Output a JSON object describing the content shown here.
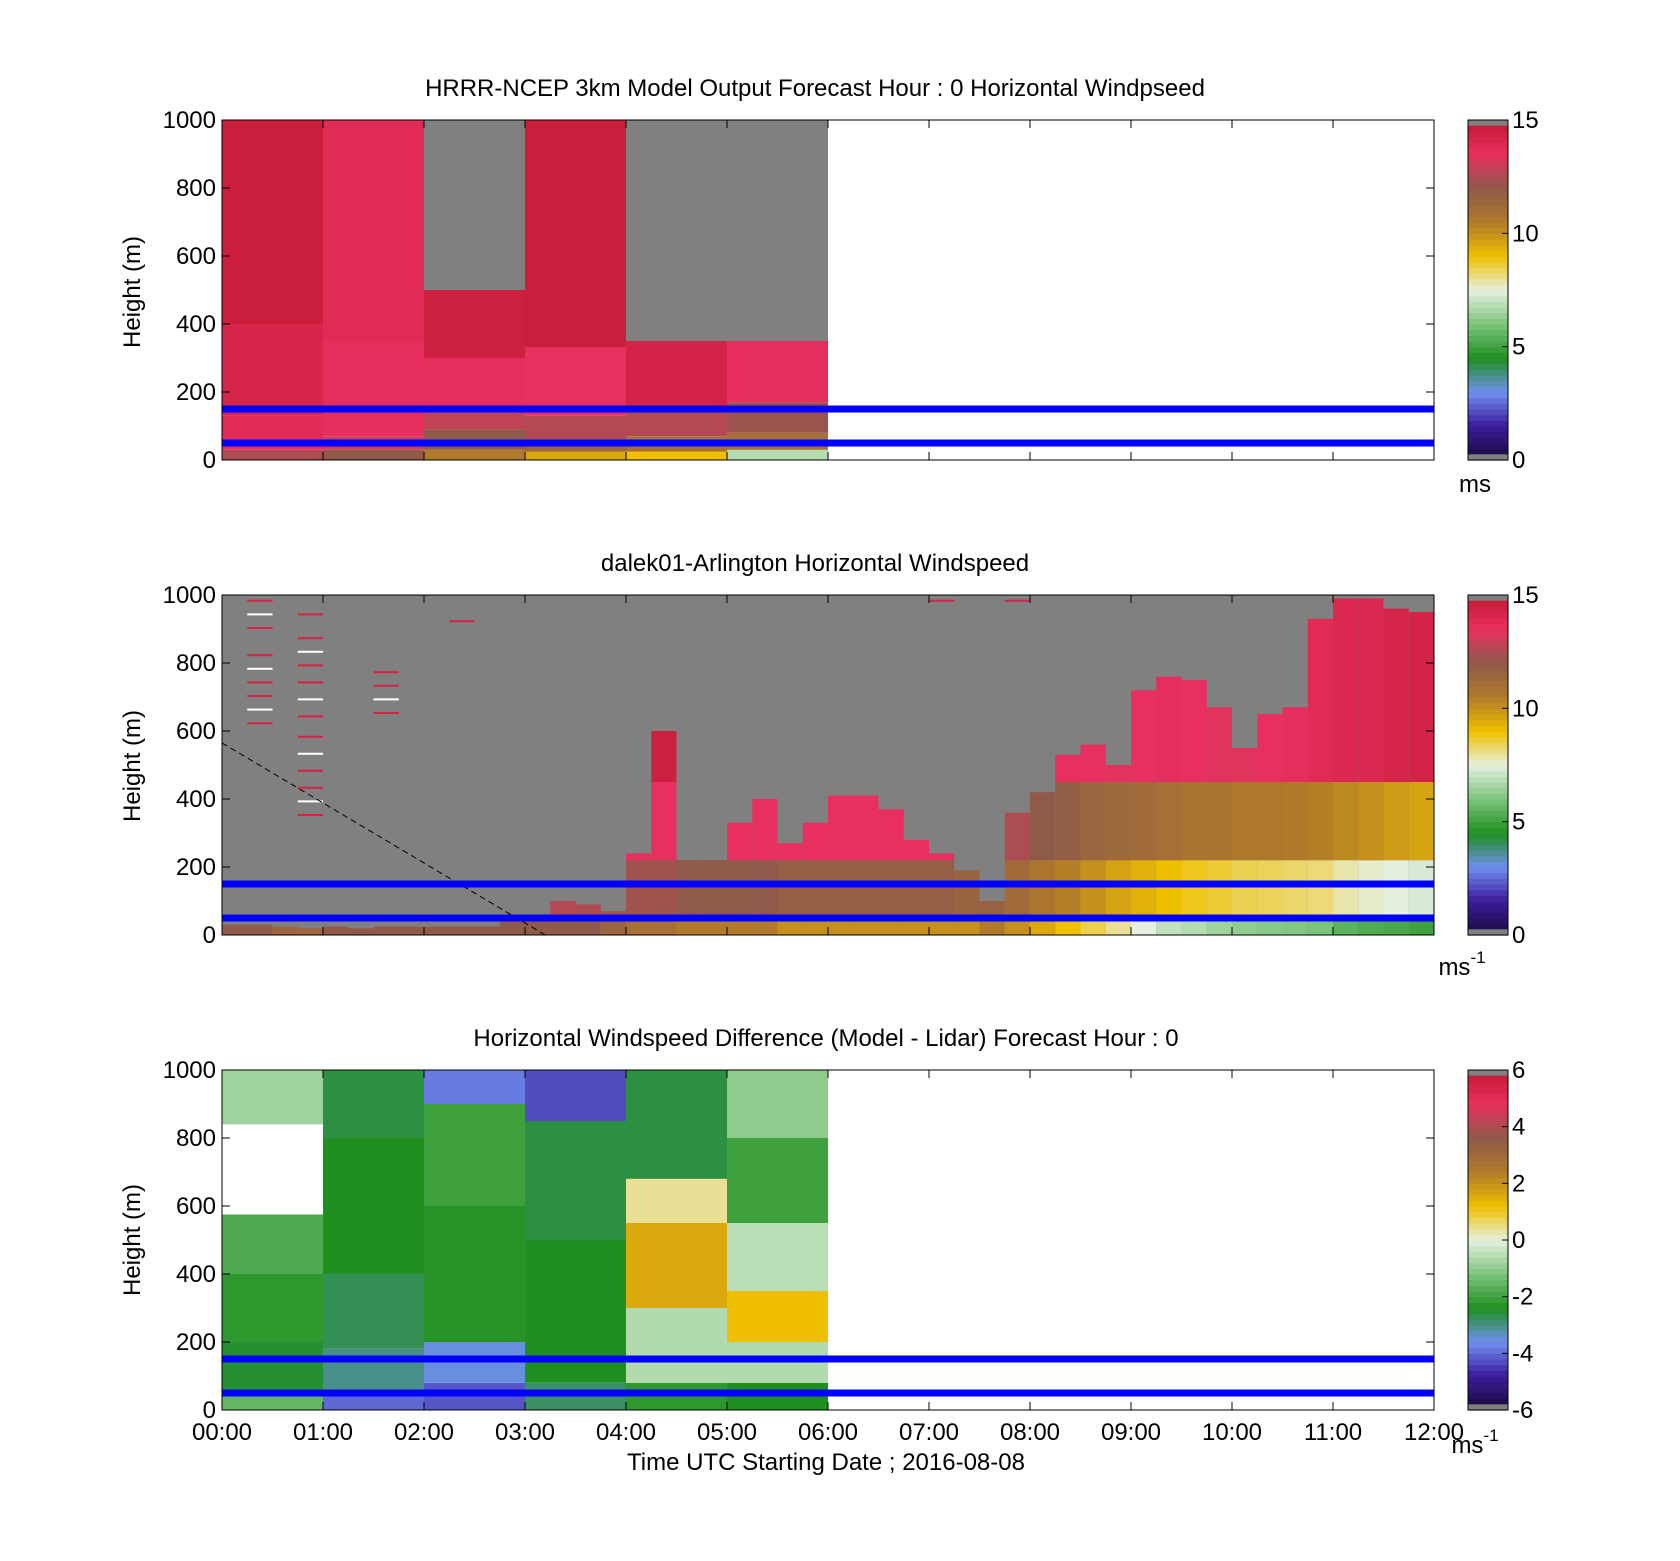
{
  "colors": {
    "background": "#ffffff",
    "missing": "#808080",
    "reference_line": "#0000ff",
    "palette_speed": [
      "#1a0a3a",
      "#3a1a9a",
      "#6f8ff0",
      "#1f8f1f",
      "#7cc47c",
      "#e6f0e0",
      "#f0c000",
      "#b07a2a",
      "#8f5a4a",
      "#e83060",
      "#c01830"
    ],
    "palette_diff": [
      "#1a0a3a",
      "#3a1a9a",
      "#6f8ff0",
      "#1f8f1f",
      "#7cc47c",
      "#e6f0e0",
      "#f0c000",
      "#b07a2a",
      "#8f5a4a",
      "#e83060",
      "#c01830"
    ]
  },
  "x_axis": {
    "label": "Time UTC  Starting Date ; 2016-08-08",
    "ticks": [
      "00:00",
      "01:00",
      "02:00",
      "03:00",
      "04:00",
      "05:00",
      "06:00",
      "07:00",
      "08:00",
      "09:00",
      "10:00",
      "11:00",
      "12:00"
    ]
  },
  "chart_data": [
    {
      "type": "heatmap",
      "title": "HRRR-NCEP 3km Model Output   Forecast Hour : 0 Horizontal Windpseed",
      "xlabel": "",
      "ylabel": "Height (m)",
      "xlim": [
        "00:00",
        "12:00"
      ],
      "ylim": [
        0,
        1000
      ],
      "yticks": [
        "0",
        "200",
        "400",
        "600",
        "800",
        "1000"
      ],
      "colorbar": {
        "min": 0,
        "max": 15,
        "ticks": [
          "0",
          "5",
          "10",
          "15"
        ],
        "unit": "ms",
        "unit_sup": ""
      },
      "reference_lines_m": [
        50,
        150
      ],
      "columns": [
        {
          "start": "00:00",
          "end": "01:00",
          "layers": [
            {
              "from": 0,
              "to": 30,
              "value": 12.5
            },
            {
              "from": 30,
              "to": 60,
              "value": 13.5
            },
            {
              "from": 60,
              "to": 130,
              "value": 13.8
            },
            {
              "from": 130,
              "to": 400,
              "value": 14.2
            },
            {
              "from": 400,
              "to": 1000,
              "value": 14.6
            }
          ]
        },
        {
          "start": "01:00",
          "end": "02:00",
          "layers": [
            {
              "from": 0,
              "to": 30,
              "value": 12.0
            },
            {
              "from": 30,
              "to": 70,
              "value": 13.0
            },
            {
              "from": 70,
              "to": 350,
              "value": 13.6
            },
            {
              "from": 350,
              "to": 1000,
              "value": 13.8
            }
          ]
        },
        {
          "start": "02:00",
          "end": "03:00",
          "layers": [
            {
              "from": 0,
              "to": 30,
              "value": 10.5
            },
            {
              "from": 30,
              "to": 90,
              "value": 12.0
            },
            {
              "from": 90,
              "to": 160,
              "value": 12.8
            },
            {
              "from": 160,
              "to": 300,
              "value": 13.6
            },
            {
              "from": 300,
              "to": 500,
              "value": 14.5
            }
          ]
        },
        {
          "start": "03:00",
          "end": "04:00",
          "layers": [
            {
              "from": 0,
              "to": 25,
              "value": 9.5
            },
            {
              "from": 25,
              "to": 60,
              "value": 11.5
            },
            {
              "from": 60,
              "to": 130,
              "value": 12.6
            },
            {
              "from": 130,
              "to": 330,
              "value": 13.5
            },
            {
              "from": 330,
              "to": 1000,
              "value": 14.6
            }
          ]
        },
        {
          "start": "04:00",
          "end": "05:00",
          "layers": [
            {
              "from": 0,
              "to": 25,
              "value": 9.0
            },
            {
              "from": 25,
              "to": 70,
              "value": 11.0
            },
            {
              "from": 70,
              "to": 150,
              "value": 12.6
            },
            {
              "from": 150,
              "to": 350,
              "value": 14.3
            }
          ]
        },
        {
          "start": "05:00",
          "end": "06:00",
          "layers": [
            {
              "from": 0,
              "to": 30,
              "value": 6.8
            },
            {
              "from": 30,
              "to": 80,
              "value": 11.0
            },
            {
              "from": 80,
              "to": 170,
              "value": 12.2
            },
            {
              "from": 170,
              "to": 350,
              "value": 13.6
            }
          ]
        }
      ],
      "missing_ranges": [
        {
          "start": "02:00",
          "end": "03:00",
          "from": 500,
          "to": 1000
        },
        {
          "start": "04:00",
          "end": "06:00",
          "from": 350,
          "to": 1000
        }
      ]
    },
    {
      "type": "heatmap",
      "title": "dalek01-Arlington  Horizontal Windspeed",
      "xlabel": "",
      "ylabel": "Height (m)",
      "xlim": [
        "00:00",
        "12:00"
      ],
      "ylim": [
        0,
        1000
      ],
      "yticks": [
        "0",
        "200",
        "400",
        "600",
        "800",
        "1000"
      ],
      "colorbar": {
        "min": 0,
        "max": 15,
        "ticks": [
          "0",
          "5",
          "10",
          "15"
        ],
        "unit": "ms",
        "unit_sup": "-1"
      },
      "reference_lines_m": [
        50,
        150
      ],
      "dashed_line": {
        "from": [
          "00:00",
          565
        ],
        "to": [
          "03:12",
          0
        ]
      },
      "profiles": [
        {
          "t": "00:00",
          "top": 30,
          "surface": 12.0,
          "mid": 13.0,
          "upper": 14.0
        },
        {
          "t": "00:15",
          "top": 30,
          "surface": 12.0,
          "mid": 13.0,
          "upper": 14.0
        },
        {
          "t": "00:30",
          "top": 25,
          "surface": 11.5,
          "mid": 12.5,
          "upper": 13.5
        },
        {
          "t": "00:45",
          "top": 20,
          "surface": 11.5,
          "mid": 12.5,
          "upper": 13.5
        },
        {
          "t": "01:00",
          "top": 25,
          "surface": 12.0,
          "mid": 13.0,
          "upper": 14.0
        },
        {
          "t": "01:15",
          "top": 20,
          "surface": 12.0,
          "mid": 13.0,
          "upper": 14.0
        },
        {
          "t": "01:30",
          "top": 25,
          "surface": 12.0,
          "mid": 13.0,
          "upper": 14.0
        },
        {
          "t": "01:45",
          "top": 25,
          "surface": 12.0,
          "mid": 13.0,
          "upper": 14.0
        },
        {
          "t": "02:00",
          "top": 25,
          "surface": 12.0,
          "mid": 13.0,
          "upper": 14.0
        },
        {
          "t": "02:15",
          "top": 25,
          "surface": 12.0,
          "mid": 13.0,
          "upper": 14.0
        },
        {
          "t": "02:30",
          "top": 25,
          "surface": 12.0,
          "mid": 13.0,
          "upper": 14.0
        },
        {
          "t": "02:45",
          "top": 40,
          "surface": 12.0,
          "mid": 13.0,
          "upper": 14.0
        },
        {
          "t": "03:00",
          "top": 60,
          "surface": 12.0,
          "mid": 13.0,
          "upper": 14.2
        },
        {
          "t": "03:15",
          "top": 100,
          "surface": 12.0,
          "mid": 13.2,
          "upper": 14.2
        },
        {
          "t": "03:30",
          "top": 90,
          "surface": 12.0,
          "mid": 13.0,
          "upper": 14.2
        },
        {
          "t": "03:45",
          "top": 70,
          "surface": 11.5,
          "mid": 13.0,
          "upper": 14.0
        },
        {
          "t": "04:00",
          "top": 240,
          "surface": 11.0,
          "mid": 13.5,
          "upper": 14.3
        },
        {
          "t": "04:15",
          "top": 600,
          "surface": 11.0,
          "mid": 13.5,
          "upper": 14.5
        },
        {
          "t": "04:30",
          "top": 220,
          "surface": 10.5,
          "mid": 13.5,
          "upper": 14.3
        },
        {
          "t": "04:45",
          "top": 220,
          "surface": 10.5,
          "mid": 13.5,
          "upper": 14.3
        },
        {
          "t": "05:00",
          "top": 330,
          "surface": 10.5,
          "mid": 13.5,
          "upper": 14.3
        },
        {
          "t": "05:15",
          "top": 400,
          "surface": 10.5,
          "mid": 13.5,
          "upper": 14.3
        },
        {
          "t": "05:30",
          "top": 270,
          "surface": 10.0,
          "mid": 13.5,
          "upper": 14.3
        },
        {
          "t": "05:45",
          "top": 330,
          "surface": 10.0,
          "mid": 13.5,
          "upper": 14.3
        },
        {
          "t": "06:00",
          "top": 410,
          "surface": 10.0,
          "mid": 13.5,
          "upper": 14.5
        },
        {
          "t": "06:15",
          "top": 410,
          "surface": 10.0,
          "mid": 13.5,
          "upper": 14.5
        },
        {
          "t": "06:30",
          "top": 370,
          "surface": 10.0,
          "mid": 13.5,
          "upper": 14.5
        },
        {
          "t": "06:45",
          "top": 280,
          "surface": 10.0,
          "mid": 13.5,
          "upper": 14.3
        },
        {
          "t": "07:00",
          "top": 240,
          "surface": 10.0,
          "mid": 13.5,
          "upper": 14.3
        },
        {
          "t": "07:15",
          "top": 190,
          "surface": 10.0,
          "mid": 13.2,
          "upper": 14.0
        },
        {
          "t": "07:30",
          "top": 100,
          "surface": 10.5,
          "mid": 12.8,
          "upper": 13.5
        },
        {
          "t": "07:45",
          "top": 360,
          "surface": 10.0,
          "mid": 12.5,
          "upper": 13.8
        },
        {
          "t": "08:00",
          "top": 420,
          "surface": 9.5,
          "mid": 12.0,
          "upper": 13.6
        },
        {
          "t": "08:15",
          "top": 530,
          "surface": 9.0,
          "mid": 11.8,
          "upper": 13.5
        },
        {
          "t": "08:30",
          "top": 560,
          "surface": 8.5,
          "mid": 11.5,
          "upper": 13.5
        },
        {
          "t": "08:45",
          "top": 500,
          "surface": 8.0,
          "mid": 11.3,
          "upper": 13.4
        },
        {
          "t": "09:00",
          "top": 720,
          "surface": 7.5,
          "mid": 11.2,
          "upper": 13.5
        },
        {
          "t": "09:15",
          "top": 760,
          "surface": 7.0,
          "mid": 11.0,
          "upper": 13.6
        },
        {
          "t": "09:30",
          "top": 750,
          "surface": 6.8,
          "mid": 10.8,
          "upper": 13.5
        },
        {
          "t": "09:45",
          "top": 670,
          "surface": 6.5,
          "mid": 10.8,
          "upper": 13.4
        },
        {
          "t": "10:00",
          "top": 550,
          "surface": 6.3,
          "mid": 10.6,
          "upper": 13.4
        },
        {
          "t": "10:15",
          "top": 650,
          "surface": 6.2,
          "mid": 10.6,
          "upper": 13.5
        },
        {
          "t": "10:30",
          "top": 670,
          "surface": 6.1,
          "mid": 10.5,
          "upper": 13.6
        },
        {
          "t": "10:45",
          "top": 930,
          "surface": 6.0,
          "mid": 10.4,
          "upper": 13.8
        },
        {
          "t": "11:00",
          "top": 990,
          "surface": 5.5,
          "mid": 10.2,
          "upper": 14.0
        },
        {
          "t": "11:15",
          "top": 990,
          "surface": 5.3,
          "mid": 10.0,
          "upper": 14.0
        },
        {
          "t": "11:30",
          "top": 960,
          "surface": 5.2,
          "mid": 9.8,
          "upper": 14.2
        },
        {
          "t": "11:45",
          "top": 950,
          "surface": 5.0,
          "mid": 9.6,
          "upper": 14.3
        }
      ],
      "isolated_returns": [
        {
          "t": "00:15",
          "heights": [
            620,
            660,
            700,
            740,
            780,
            820,
            900,
            940,
            980
          ]
        },
        {
          "t": "00:45",
          "heights": [
            350,
            390,
            430,
            480,
            530,
            580,
            640,
            690,
            740,
            790,
            830,
            870,
            940
          ]
        },
        {
          "t": "01:30",
          "heights": [
            650,
            690,
            730,
            770
          ]
        },
        {
          "t": "02:15",
          "heights": [
            920
          ]
        },
        {
          "t": "07:00",
          "heights": [
            980
          ]
        },
        {
          "t": "07:45",
          "heights": [
            980
          ]
        }
      ]
    },
    {
      "type": "heatmap",
      "title": "Horizontal Windspeed Difference (Model - Lidar) Forecast Hour : 0",
      "xlabel": "Time UTC  Starting Date ; 2016-08-08",
      "ylabel": "Height (m)",
      "xlim": [
        "00:00",
        "12:00"
      ],
      "ylim": [
        0,
        1000
      ],
      "yticks": [
        "0",
        "200",
        "400",
        "600",
        "800",
        "1000"
      ],
      "colorbar": {
        "min": -6,
        "max": 6,
        "ticks": [
          "-6",
          "-4",
          "-2",
          "0",
          "2",
          "4",
          "6"
        ],
        "unit": "ms",
        "unit_sup": "-1"
      },
      "reference_lines_m": [
        50,
        150
      ],
      "columns": [
        {
          "start": "00:00",
          "end": "01:00",
          "layers": [
            {
              "from": 0,
              "to": 40,
              "value": -1.5
            },
            {
              "from": 40,
              "to": 200,
              "value": -2.5
            },
            {
              "from": 200,
              "to": 400,
              "value": -2.2
            },
            {
              "from": 400,
              "to": 575,
              "value": -1.8
            },
            {
              "from": 840,
              "to": 1000,
              "value": -0.8
            }
          ]
        },
        {
          "start": "01:00",
          "end": "02:00",
          "layers": [
            {
              "from": 0,
              "to": 60,
              "value": -4.0
            },
            {
              "from": 60,
              "to": 180,
              "value": -3.0
            },
            {
              "from": 180,
              "to": 400,
              "value": -2.7
            },
            {
              "from": 400,
              "to": 800,
              "value": -2.4
            },
            {
              "from": 800,
              "to": 1000,
              "value": -2.6
            }
          ]
        },
        {
          "start": "02:00",
          "end": "03:00",
          "layers": [
            {
              "from": 0,
              "to": 80,
              "value": -4.2
            },
            {
              "from": 80,
              "to": 200,
              "value": -3.5
            },
            {
              "from": 200,
              "to": 600,
              "value": -2.3
            },
            {
              "from": 600,
              "to": 900,
              "value": -2.0
            },
            {
              "from": 900,
              "to": 1000,
              "value": -3.8
            }
          ]
        },
        {
          "start": "03:00",
          "end": "04:00",
          "layers": [
            {
              "from": 0,
              "to": 80,
              "value": -2.8
            },
            {
              "from": 80,
              "to": 500,
              "value": -2.4
            },
            {
              "from": 500,
              "to": 850,
              "value": -2.6
            },
            {
              "from": 850,
              "to": 1000,
              "value": -4.3
            }
          ]
        },
        {
          "start": "04:00",
          "end": "05:00",
          "layers": [
            {
              "from": 0,
              "to": 80,
              "value": -2.2
            },
            {
              "from": 80,
              "to": 300,
              "value": -0.6
            },
            {
              "from": 300,
              "to": 550,
              "value": 1.6
            },
            {
              "from": 550,
              "to": 680,
              "value": 0.4
            },
            {
              "from": 680,
              "to": 1000,
              "value": -2.6
            }
          ]
        },
        {
          "start": "05:00",
          "end": "06:00",
          "layers": [
            {
              "from": 0,
              "to": 80,
              "value": -2.4
            },
            {
              "from": 80,
              "to": 200,
              "value": -0.6
            },
            {
              "from": 200,
              "to": 350,
              "value": 1.2
            },
            {
              "from": 350,
              "to": 550,
              "value": -0.5
            },
            {
              "from": 550,
              "to": 800,
              "value": -2.0
            },
            {
              "from": 800,
              "to": 1000,
              "value": -1.0
            }
          ]
        }
      ]
    }
  ]
}
